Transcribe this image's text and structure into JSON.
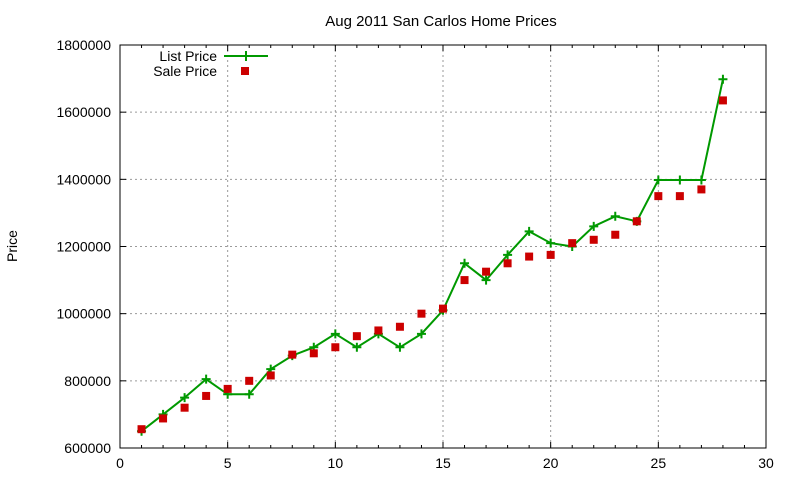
{
  "chart_data": {
    "type": "line",
    "title": "Aug 2011 San Carlos Home Prices",
    "xlabel": "",
    "ylabel": "Price",
    "xlim": [
      0,
      30
    ],
    "ylim": [
      600000,
      1800000
    ],
    "xticks": [
      0,
      5,
      10,
      15,
      20,
      25,
      30
    ],
    "yticks": [
      600000,
      800000,
      1000000,
      1200000,
      1400000,
      1600000,
      1800000
    ],
    "grid": true,
    "legend_position": "top-left",
    "x": [
      1,
      2,
      3,
      4,
      5,
      6,
      7,
      8,
      9,
      10,
      11,
      12,
      13,
      14,
      15,
      16,
      17,
      18,
      19,
      20,
      21,
      22,
      23,
      24,
      25,
      26,
      27,
      28
    ],
    "series": [
      {
        "name": "List Price",
        "style": "line+cross",
        "color": "#009900",
        "values": [
          650000,
          700000,
          750000,
          805000,
          760000,
          760000,
          835000,
          875000,
          900000,
          940000,
          900000,
          940000,
          900000,
          940000,
          1010000,
          1150000,
          1100000,
          1175000,
          1245000,
          1210000,
          1200000,
          1260000,
          1290000,
          1275000,
          1398000,
          1398000,
          1398000,
          1698000
        ]
      },
      {
        "name": "Sale Price",
        "style": "square",
        "color": "#cc0000",
        "values": [
          656000,
          688000,
          720000,
          755000,
          776000,
          800000,
          816000,
          878000,
          882000,
          900000,
          933000,
          950000,
          961000,
          1000000,
          1015000,
          1100000,
          1125000,
          1150000,
          1170000,
          1175000,
          1210000,
          1220000,
          1235000,
          1275000,
          1350000,
          1350000,
          1370000,
          1635000
        ]
      }
    ]
  }
}
